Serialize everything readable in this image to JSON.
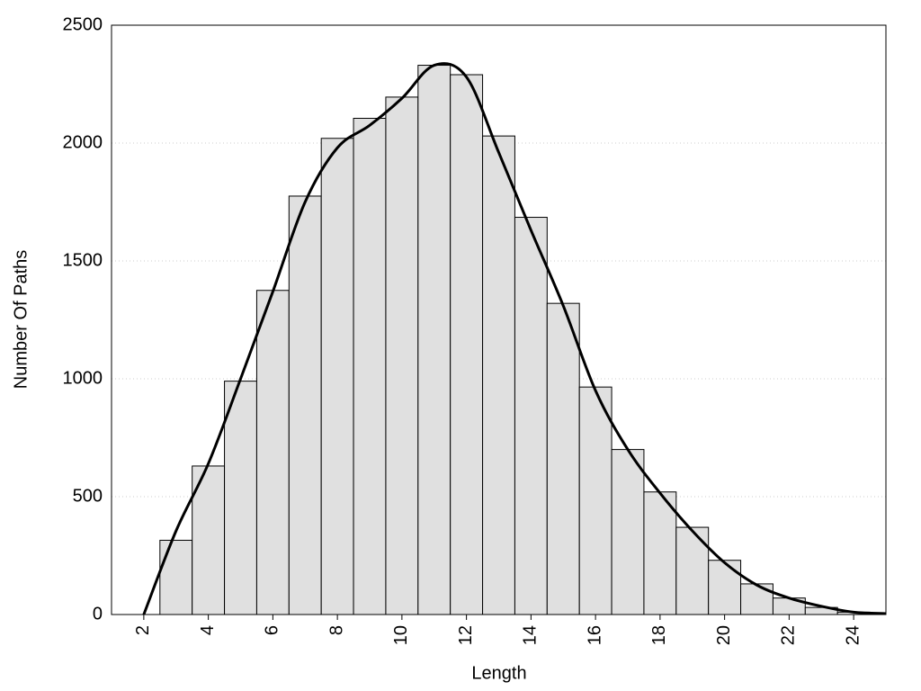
{
  "chart_data": {
    "type": "histogram",
    "xlabel": "Length",
    "ylabel": "Number Of Paths",
    "bins": [
      2.5,
      3.5,
      4.5,
      5.5,
      6.5,
      7.5,
      8.5,
      9.5,
      10.5,
      11.5,
      12.5,
      13.5,
      14.5,
      15.5,
      16.5,
      17.5,
      18.5,
      19.5,
      20.5,
      21.5,
      22.5,
      23.5,
      24.5
    ],
    "values": [
      315,
      630,
      990,
      1375,
      1775,
      2020,
      2105,
      2195,
      2330,
      2290,
      2030,
      1685,
      1320,
      965,
      700,
      520,
      370,
      230,
      130,
      70,
      30,
      10
    ],
    "color": "#e0e0e0",
    "line": {
      "x": [
        2,
        3,
        4,
        5,
        6,
        7,
        8,
        9,
        10,
        11,
        12,
        13,
        14,
        15,
        16,
        17,
        18,
        19,
        20,
        21,
        22,
        23,
        24,
        25
      ],
      "values": [
        0,
        355,
        640,
        1000,
        1370,
        1750,
        1980,
        2075,
        2190,
        2330,
        2280,
        1960,
        1630,
        1310,
        950,
        700,
        515,
        355,
        220,
        125,
        70,
        35,
        10,
        4
      ],
      "color": "#000000"
    },
    "xlim": [
      1,
      25
    ],
    "ylim": [
      0,
      2500
    ],
    "xticks": [
      2,
      4,
      6,
      8,
      10,
      12,
      14,
      16,
      18,
      20,
      22,
      24
    ],
    "yticks": [
      0,
      500,
      1000,
      1500,
      2000,
      2500
    ],
    "grid": true
  }
}
